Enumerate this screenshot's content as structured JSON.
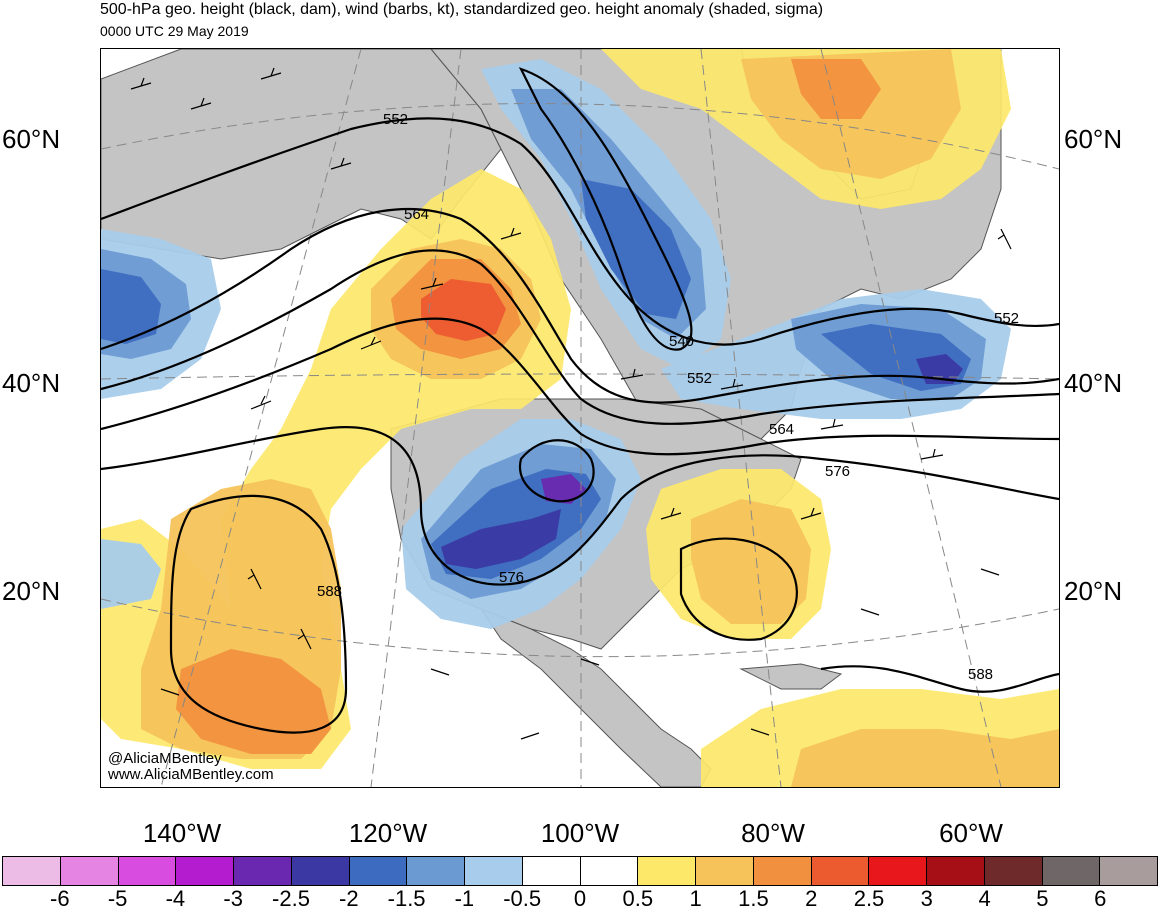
{
  "header": {
    "title": "500-hPa geo. height (black, dam), wind (barbs, kt), standardized geo. height anomaly (shaded, sigma)",
    "subtitle": "0000 UTC 29 May 2019"
  },
  "lat_labels": [
    "60°N",
    "40°N",
    "20°N"
  ],
  "lon_labels": [
    "140°W",
    "120°W",
    "100°W",
    "80°W",
    "60°W"
  ],
  "contour_labels": [
    "552",
    "564",
    "540",
    "552",
    "552",
    "564",
    "576",
    "576",
    "588",
    "588"
  ],
  "credits": {
    "handle": "@AliciaMBentley",
    "site": "www.AliciaMBentley.com"
  },
  "colorbar": {
    "ticks": [
      "-6",
      "-5",
      "-4",
      "-3",
      "-2.5",
      "-2",
      "-1.5",
      "-1",
      "-0.5",
      "0",
      "0.5",
      "1",
      "1.5",
      "2",
      "2.5",
      "3",
      "4",
      "5",
      "6"
    ],
    "colors": [
      "#ecbce6",
      "#e684e4",
      "#d94ce0",
      "#b41ccf",
      "#6a28b0",
      "#3b38a4",
      "#3d6bbf",
      "#6b9ad3",
      "#a8cceb",
      "#ffffff",
      "#ffffff",
      "#fde86a",
      "#f6c35a",
      "#f1913f",
      "#ec5a30",
      "#e8171b",
      "#a50f15",
      "#6e2a2a",
      "#6f6767",
      "#a89c9c"
    ]
  },
  "colors": {
    "land": "#c4c4c4",
    "coast": "#555555",
    "contour": "#000000"
  }
}
